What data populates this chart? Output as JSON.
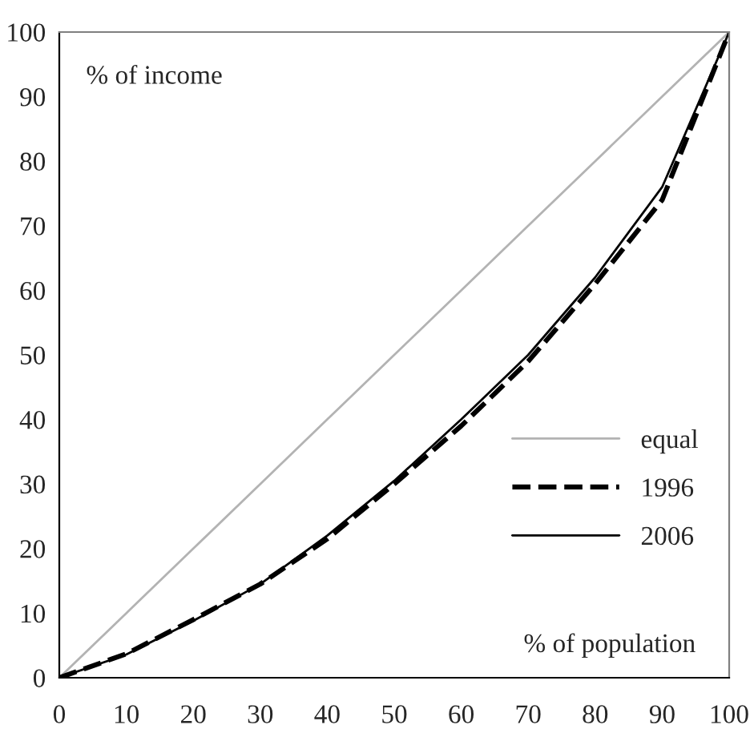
{
  "chart_data": {
    "type": "line",
    "x": [
      0,
      10,
      20,
      30,
      40,
      50,
      60,
      70,
      80,
      90,
      100
    ],
    "series": [
      {
        "name": "equal",
        "color": "#b3b3b3",
        "line_style": "solid",
        "values": [
          0,
          10,
          20,
          30,
          40,
          50,
          60,
          70,
          80,
          90,
          100
        ]
      },
      {
        "name": "1996",
        "color": "#000000",
        "line_style": "dashed",
        "values": [
          0,
          3.7,
          9,
          14.5,
          21.5,
          30,
          39,
          49,
          61,
          74,
          100
        ]
      },
      {
        "name": "2006",
        "color": "#000000",
        "line_style": "solid",
        "values": [
          0,
          3.6,
          8.8,
          14.5,
          22,
          30.5,
          40,
          50,
          62,
          76,
          100
        ]
      }
    ],
    "xlim": [
      0,
      100
    ],
    "ylim": [
      0,
      100
    ],
    "xticks": [
      0,
      10,
      20,
      30,
      40,
      50,
      60,
      70,
      80,
      90,
      100
    ],
    "yticks": [
      0,
      10,
      20,
      30,
      40,
      50,
      60,
      70,
      80,
      90,
      100
    ],
    "annotations": [
      "% of income",
      "% of population"
    ],
    "legend": "right",
    "grid": false,
    "marker": "none"
  }
}
